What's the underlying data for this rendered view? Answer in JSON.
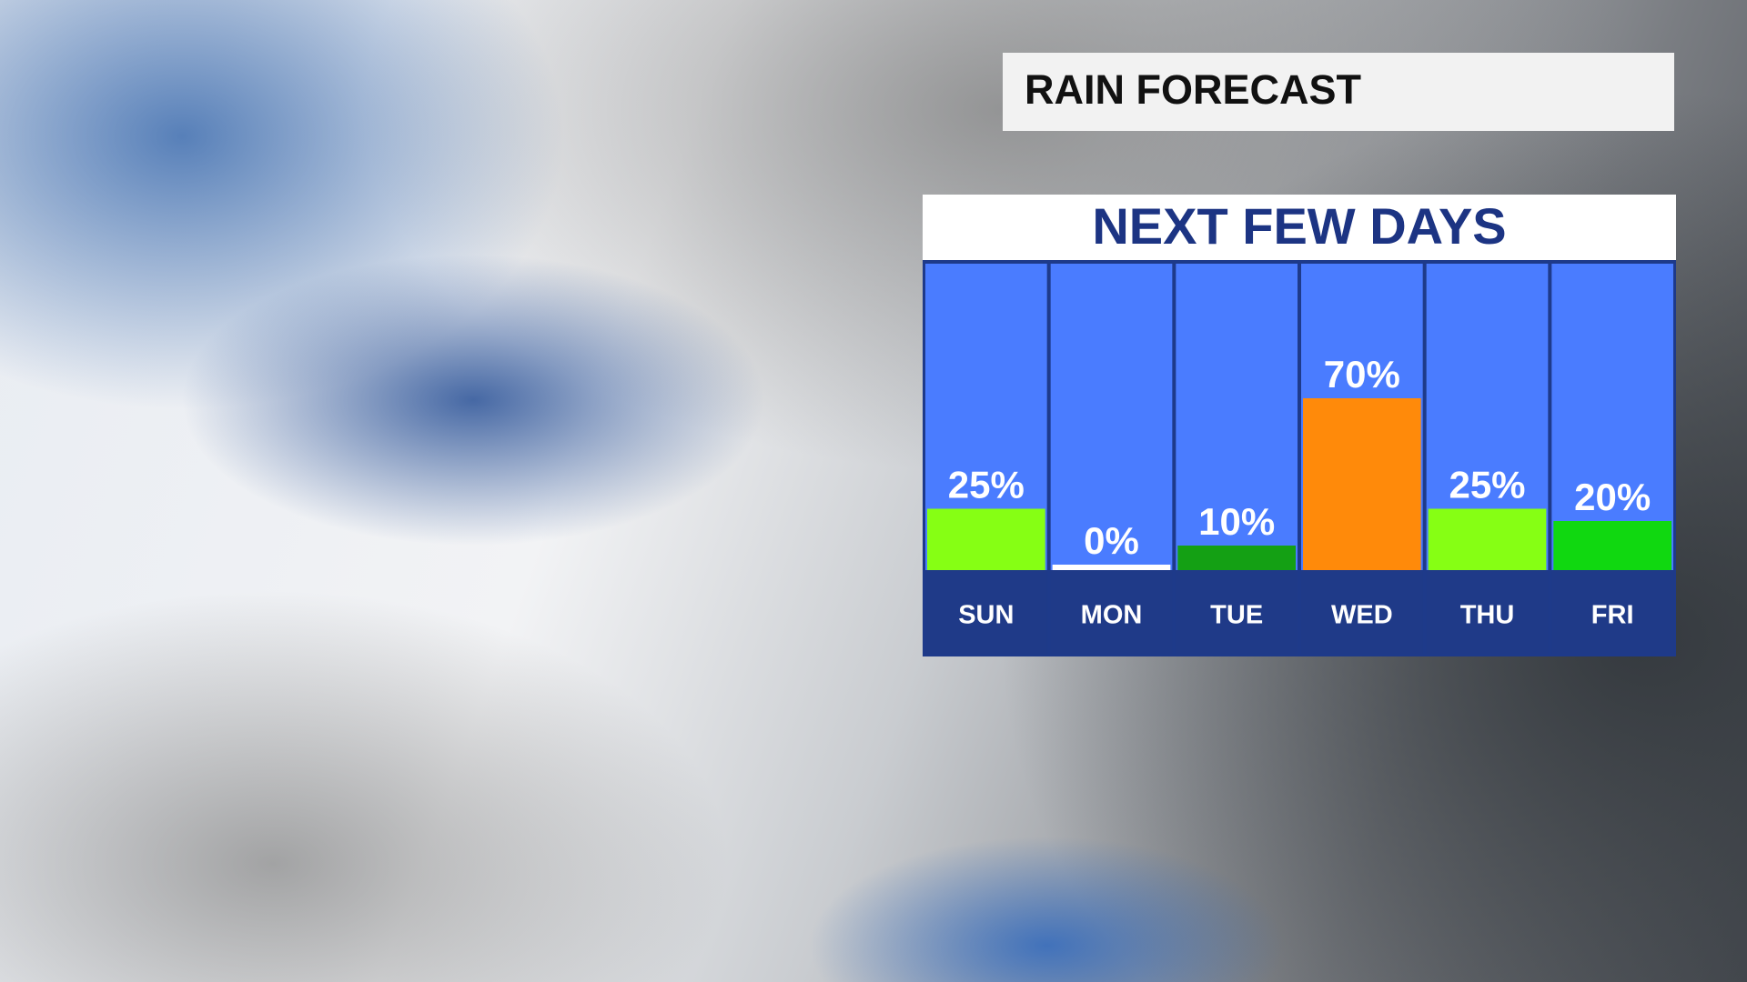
{
  "chart_data": {
    "type": "bar",
    "header": "RAIN FORECAST",
    "title": "NEXT FEW DAYS",
    "categories": [
      "SUN",
      "MON",
      "TUE",
      "WED",
      "THU",
      "FRI"
    ],
    "values": [
      25,
      0,
      10,
      70,
      25,
      20
    ],
    "value_labels": [
      "25%",
      "0%",
      "10%",
      "70%",
      "25%",
      "20%"
    ],
    "colors": [
      "#86ff14",
      "#ffffff",
      "#14a014",
      "#ff8a0a",
      "#86ff14",
      "#10d810"
    ]
  }
}
